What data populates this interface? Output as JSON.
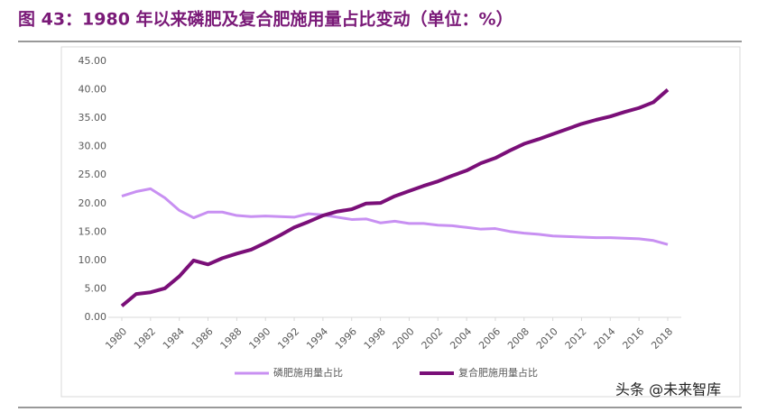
{
  "chart_data": {
    "type": "line",
    "title": "图 43：1980 年以来磷肥及复合肥施用量占比变动（单位：%）",
    "watermark": "头条 @未来智库",
    "x": [
      1980,
      1981,
      1982,
      1983,
      1984,
      1985,
      1986,
      1987,
      1988,
      1989,
      1990,
      1991,
      1992,
      1993,
      1994,
      1995,
      1996,
      1997,
      1998,
      1999,
      2000,
      2001,
      2002,
      2003,
      2004,
      2005,
      2006,
      2007,
      2008,
      2009,
      2010,
      2011,
      2012,
      2013,
      2014,
      2015,
      2016,
      2017,
      2018
    ],
    "xlim": [
      1980,
      2018
    ],
    "xticks": [
      1980,
      1982,
      1984,
      1986,
      1988,
      1990,
      1992,
      1994,
      1996,
      1998,
      2000,
      2002,
      2004,
      2006,
      2008,
      2010,
      2012,
      2014,
      2016,
      2018
    ],
    "ylim": [
      0,
      45
    ],
    "yticks": [
      {
        "value": 0,
        "label": "0.00"
      },
      {
        "value": 5,
        "label": "5.00"
      },
      {
        "value": 10,
        "label": "10.00"
      },
      {
        "value": 15,
        "label": "15.00"
      },
      {
        "value": 20,
        "label": "20.00"
      },
      {
        "value": 25,
        "label": "25.00"
      },
      {
        "value": 30,
        "label": "30.00"
      },
      {
        "value": 35,
        "label": "35.00"
      },
      {
        "value": 40,
        "label": "40.00"
      },
      {
        "value": 45,
        "label": "45.00"
      }
    ],
    "legend": "bottom",
    "series": [
      {
        "name": "磷肥施用量占比",
        "color": "#c890f2",
        "values": [
          21.3,
          22.1,
          22.6,
          21.0,
          18.8,
          17.5,
          18.5,
          18.5,
          17.9,
          17.7,
          17.8,
          17.7,
          17.6,
          18.2,
          18.0,
          17.6,
          17.2,
          17.3,
          16.6,
          16.9,
          16.5,
          16.5,
          16.2,
          16.1,
          15.8,
          15.5,
          15.6,
          15.1,
          14.8,
          14.6,
          14.3,
          14.2,
          14.1,
          14.0,
          14.0,
          13.9,
          13.8,
          13.5,
          12.8
        ]
      },
      {
        "name": "复合肥施用量占比",
        "color": "#7a0f78",
        "values": [
          2.0,
          4.1,
          4.4,
          5.1,
          7.2,
          10.0,
          9.3,
          10.4,
          11.2,
          11.9,
          13.1,
          14.4,
          15.8,
          16.8,
          17.9,
          18.6,
          19.0,
          20.0,
          20.1,
          21.3,
          22.2,
          23.1,
          23.9,
          24.9,
          25.8,
          27.1,
          28.0,
          29.3,
          30.5,
          31.3,
          32.2,
          33.1,
          34.0,
          34.7,
          35.3,
          36.1,
          36.8,
          37.8,
          40.0
        ]
      }
    ]
  }
}
